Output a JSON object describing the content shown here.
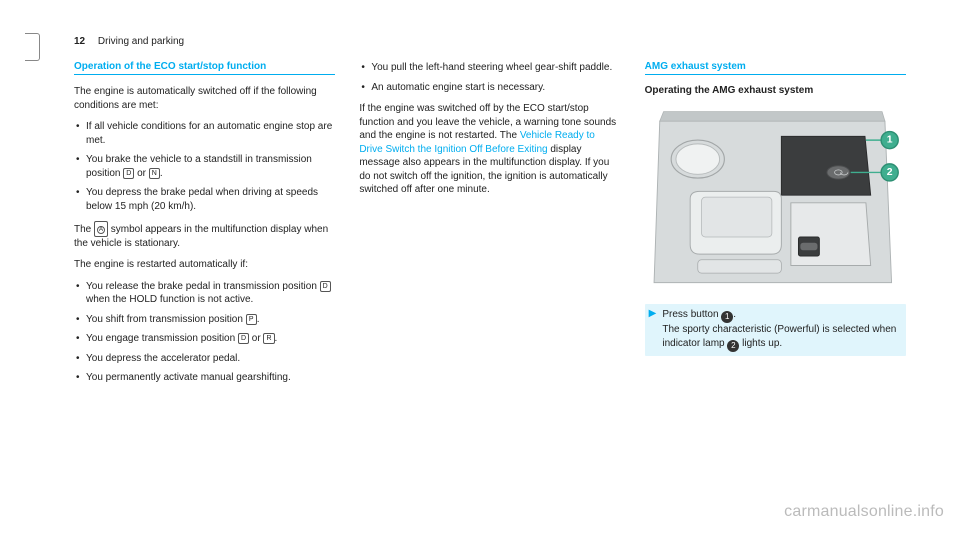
{
  "header": {
    "page_number": "12",
    "section": "Driving and parking"
  },
  "col1": {
    "heading": "Operation of the ECO start/stop function",
    "intro": "The engine is automatically switched off if the following conditions are met:",
    "conditions": [
      "If all vehicle conditions for an automatic engine stop are met.",
      "You brake the vehicle to a standstill in transmission position __D__ or __N__.",
      "You depress the brake pedal when driving at speeds below 15 mph (20 km/h)."
    ],
    "symbol_text_a": "The ",
    "symbol_text_b": " symbol appears in the multifunction display when the vehicle is stationary.",
    "restart_intro": "The engine is restarted automatically if:",
    "restart": [
      "You release the brake pedal in transmission position __D__ when the HOLD function is not active.",
      "You shift from transmission position __P__.",
      "You engage transmission position __D__ or __R__.",
      "You depress the accelerator pedal.",
      "You permanently activate manual gearshifting."
    ]
  },
  "col2": {
    "restart_cont": [
      "You pull the left-hand steering wheel gear-shift paddle.",
      "An automatic engine start is necessary."
    ],
    "warn_a": "If the engine was switched off by the ECO start/stop function and you leave the vehicle, a warning tone sounds and the engine is not restarted. The ",
    "warn_link": "Vehicle Ready to Drive Switch the Ignition Off Before Exiting",
    "warn_b": " display message also appears in the multifunction display. If you do not switch off the ignition, the ignition is automatically switched off after one minute."
  },
  "col3": {
    "heading": "AMG exhaust system",
    "sub": "Operating the AMG exhaust system",
    "step_a": "Press button ",
    "step_b": ".",
    "step_c": "The sporty characteristic (Powerful) is selected when indicator lamp ",
    "step_d": " lights up."
  },
  "watermark": "carmanualsonline.info"
}
